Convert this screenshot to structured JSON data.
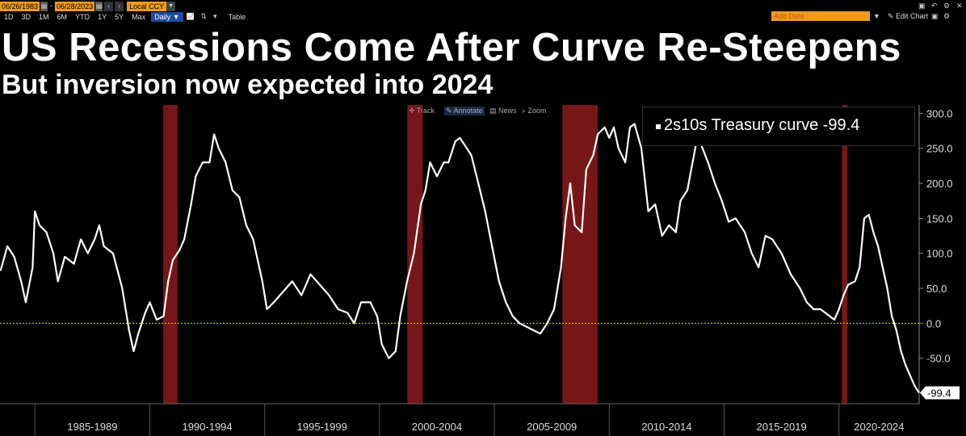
{
  "toolbar": {
    "start_date": "06/26/1983",
    "end_date": "06/28/2023",
    "currency": "Local CCY",
    "ranges": [
      "1D",
      "3D",
      "1M",
      "6M",
      "YTD",
      "1Y",
      "5Y",
      "Max"
    ],
    "frequency": "Daily ▼",
    "table_label": "Table",
    "add_data_placeholder": "Add Data",
    "edit_chart_label": "Edit Chart"
  },
  "chart_controls": {
    "track": "Track",
    "annotate": "Annotate",
    "news": "News",
    "zoom": "Zoom"
  },
  "legend": {
    "label": "2s10s Treasury curve",
    "last_value": "-99.4"
  },
  "chart_data": {
    "type": "line",
    "title": "US Recessions Come After Curve Re-Steepens",
    "subtitle": "But inversion now expected into 2024",
    "xlabel": "",
    "ylabel": "",
    "x_period_labels": [
      "1985-1989",
      "1990-1994",
      "1995-1999",
      "2000-2004",
      "2005-2009",
      "2010-2014",
      "2015-2019",
      "2020-2024"
    ],
    "xlim": [
      1983.48,
      2023.49
    ],
    "ylim": [
      -115,
      312
    ],
    "y_ticks": [
      300,
      250,
      200,
      150,
      100,
      50,
      0,
      -50
    ],
    "y_tick_labels": [
      "300.0",
      "250.0",
      "200.0",
      "150.0",
      "100.0",
      "50.0",
      "0.0",
      "-50.0"
    ],
    "zero_line": 0,
    "last_value_label": "-99.4",
    "recession_bands": [
      [
        1990.58,
        1991.21
      ],
      [
        2001.21,
        2001.88
      ],
      [
        2007.96,
        2009.5
      ],
      [
        2020.13,
        2020.37
      ]
    ],
    "series": [
      {
        "name": "2s10s Treasury curve",
        "color": "#ffffff",
        "points": [
          [
            1983.5,
            75
          ],
          [
            1983.8,
            110
          ],
          [
            1984.1,
            95
          ],
          [
            1984.4,
            60
          ],
          [
            1984.6,
            30
          ],
          [
            1984.9,
            80
          ],
          [
            1985.0,
            160
          ],
          [
            1985.2,
            140
          ],
          [
            1985.5,
            130
          ],
          [
            1985.8,
            100
          ],
          [
            1986.0,
            60
          ],
          [
            1986.3,
            95
          ],
          [
            1986.7,
            85
          ],
          [
            1987.0,
            120
          ],
          [
            1987.3,
            100
          ],
          [
            1987.6,
            120
          ],
          [
            1987.8,
            140
          ],
          [
            1988.0,
            110
          ],
          [
            1988.4,
            100
          ],
          [
            1988.8,
            50
          ],
          [
            1989.1,
            -10
          ],
          [
            1989.3,
            -40
          ],
          [
            1989.5,
            -15
          ],
          [
            1989.8,
            15
          ],
          [
            1990.0,
            30
          ],
          [
            1990.3,
            5
          ],
          [
            1990.6,
            10
          ],
          [
            1990.8,
            60
          ],
          [
            1991.0,
            90
          ],
          [
            1991.3,
            105
          ],
          [
            1991.5,
            120
          ],
          [
            1991.8,
            170
          ],
          [
            1992.0,
            210
          ],
          [
            1992.3,
            230
          ],
          [
            1992.6,
            230
          ],
          [
            1992.8,
            270
          ],
          [
            1993.0,
            250
          ],
          [
            1993.3,
            230
          ],
          [
            1993.6,
            190
          ],
          [
            1993.9,
            180
          ],
          [
            1994.2,
            140
          ],
          [
            1994.5,
            120
          ],
          [
            1994.9,
            60
          ],
          [
            1995.1,
            20
          ],
          [
            1995.4,
            30
          ],
          [
            1995.8,
            45
          ],
          [
            1996.2,
            60
          ],
          [
            1996.6,
            40
          ],
          [
            1997.0,
            70
          ],
          [
            1997.4,
            55
          ],
          [
            1997.8,
            40
          ],
          [
            1998.2,
            20
          ],
          [
            1998.6,
            15
          ],
          [
            1998.9,
            0
          ],
          [
            1999.2,
            30
          ],
          [
            1999.6,
            30
          ],
          [
            1999.9,
            10
          ],
          [
            2000.1,
            -30
          ],
          [
            2000.4,
            -50
          ],
          [
            2000.7,
            -40
          ],
          [
            2000.9,
            10
          ],
          [
            2001.2,
            60
          ],
          [
            2001.5,
            100
          ],
          [
            2001.8,
            170
          ],
          [
            2002.0,
            190
          ],
          [
            2002.2,
            230
          ],
          [
            2002.5,
            210
          ],
          [
            2002.8,
            230
          ],
          [
            2003.0,
            230
          ],
          [
            2003.3,
            260
          ],
          [
            2003.5,
            265
          ],
          [
            2003.8,
            250
          ],
          [
            2004.0,
            240
          ],
          [
            2004.3,
            200
          ],
          [
            2004.6,
            160
          ],
          [
            2004.9,
            110
          ],
          [
            2005.2,
            60
          ],
          [
            2005.5,
            30
          ],
          [
            2005.8,
            10
          ],
          [
            2006.1,
            0
          ],
          [
            2006.4,
            -5
          ],
          [
            2006.7,
            -10
          ],
          [
            2007.0,
            -15
          ],
          [
            2007.3,
            0
          ],
          [
            2007.6,
            20
          ],
          [
            2007.9,
            80
          ],
          [
            2008.1,
            150
          ],
          [
            2008.3,
            200
          ],
          [
            2008.5,
            140
          ],
          [
            2008.8,
            130
          ],
          [
            2009.0,
            220
          ],
          [
            2009.3,
            240
          ],
          [
            2009.5,
            270
          ],
          [
            2009.8,
            280
          ],
          [
            2010.0,
            265
          ],
          [
            2010.2,
            280
          ],
          [
            2010.4,
            250
          ],
          [
            2010.7,
            230
          ],
          [
            2010.9,
            280
          ],
          [
            2011.1,
            285
          ],
          [
            2011.4,
            250
          ],
          [
            2011.7,
            160
          ],
          [
            2012.0,
            170
          ],
          [
            2012.3,
            125
          ],
          [
            2012.6,
            140
          ],
          [
            2012.9,
            130
          ],
          [
            2013.1,
            175
          ],
          [
            2013.4,
            190
          ],
          [
            2013.8,
            260
          ],
          [
            2014.0,
            255
          ],
          [
            2014.3,
            230
          ],
          [
            2014.6,
            200
          ],
          [
            2014.9,
            175
          ],
          [
            2015.2,
            145
          ],
          [
            2015.5,
            150
          ],
          [
            2015.9,
            130
          ],
          [
            2016.2,
            100
          ],
          [
            2016.5,
            80
          ],
          [
            2016.8,
            125
          ],
          [
            2017.1,
            120
          ],
          [
            2017.5,
            100
          ],
          [
            2017.9,
            70
          ],
          [
            2018.3,
            50
          ],
          [
            2018.6,
            30
          ],
          [
            2018.9,
            20
          ],
          [
            2019.2,
            20
          ],
          [
            2019.6,
            10
          ],
          [
            2019.8,
            5
          ],
          [
            2020.0,
            20
          ],
          [
            2020.2,
            40
          ],
          [
            2020.4,
            55
          ],
          [
            2020.7,
            60
          ],
          [
            2020.9,
            80
          ],
          [
            2021.1,
            150
          ],
          [
            2021.3,
            155
          ],
          [
            2021.5,
            130
          ],
          [
            2021.7,
            110
          ],
          [
            2021.9,
            80
          ],
          [
            2022.1,
            50
          ],
          [
            2022.3,
            10
          ],
          [
            2022.5,
            -10
          ],
          [
            2022.7,
            -40
          ],
          [
            2022.9,
            -60
          ],
          [
            2023.1,
            -75
          ],
          [
            2023.3,
            -90
          ],
          [
            2023.49,
            -99.4
          ]
        ]
      }
    ],
    "colors": {
      "background": "#000000",
      "line": "#ffffff",
      "recession": "#8b1a1a",
      "zero_line": "#e0e000",
      "accent": "#f29a1c"
    }
  }
}
